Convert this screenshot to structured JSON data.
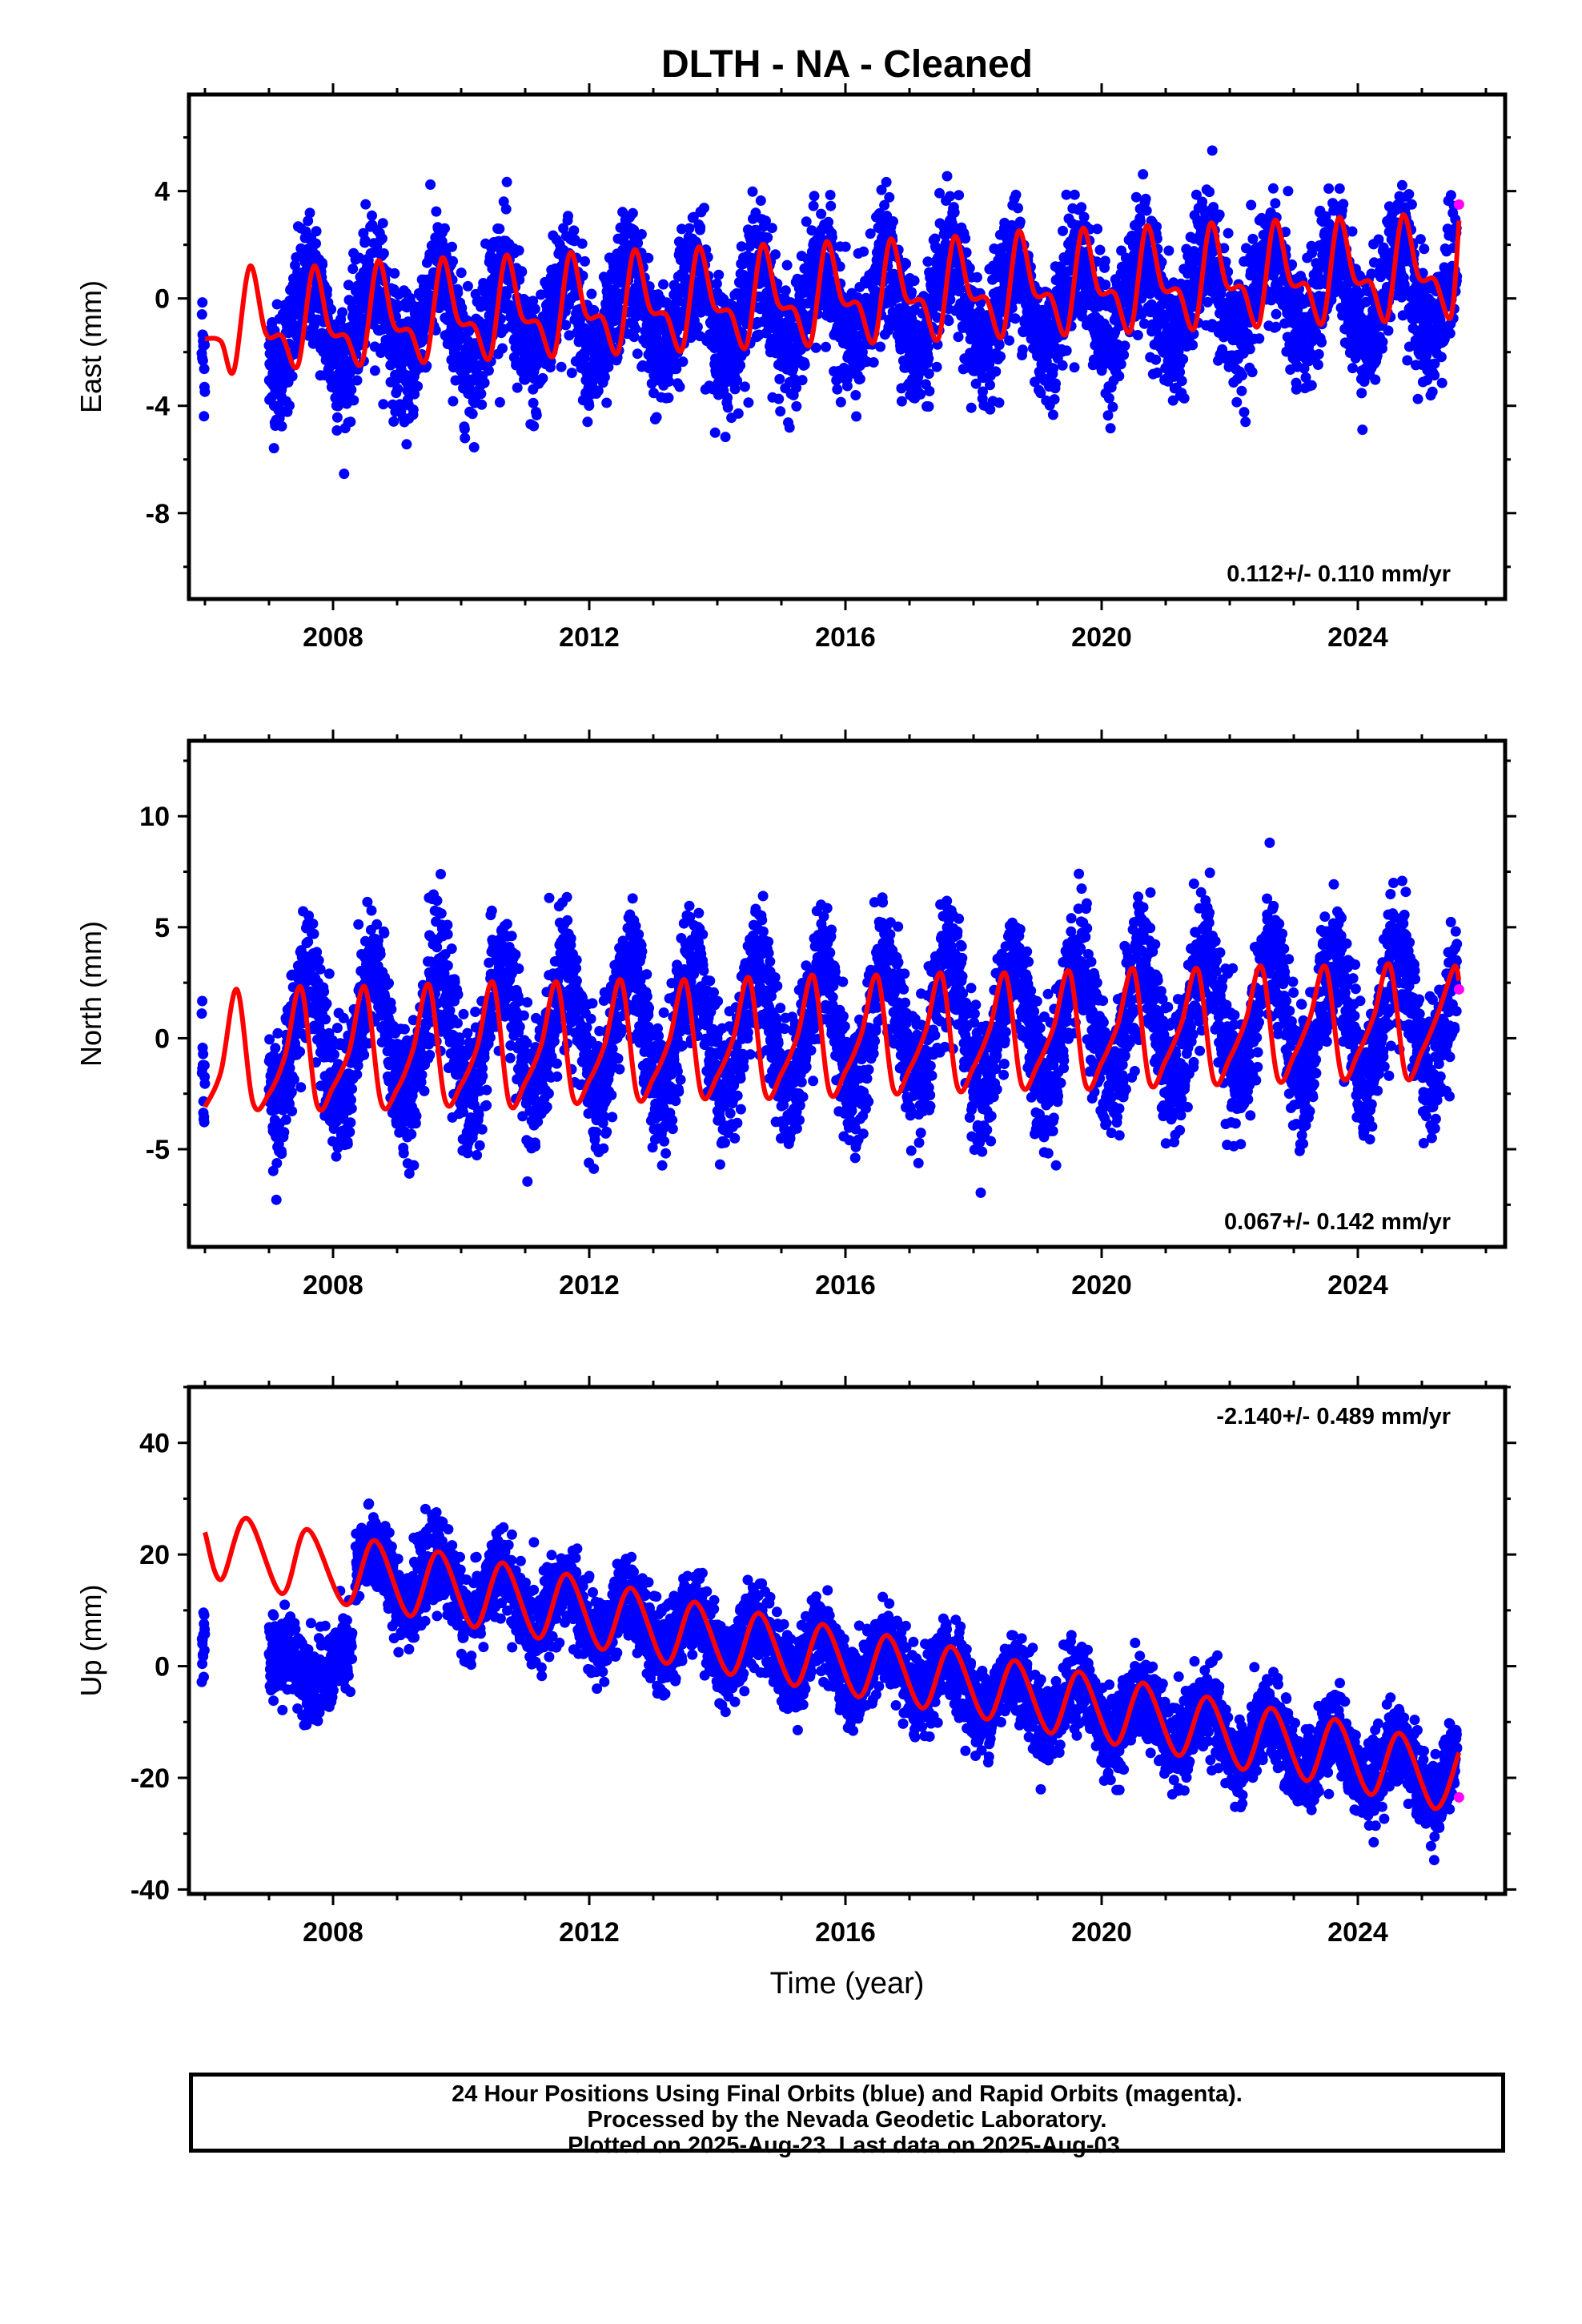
{
  "title": "DLTH  - NA - Cleaned",
  "caption": {
    "line1": "24 Hour Positions Using Final Orbits (blue) and Rapid Orbits (magenta).",
    "line2": "Processed by the Nevada Geodetic Laboratory.",
    "line3": "Plotted on 2025-Aug-23. Last data on 2025-Aug-03."
  },
  "colors": {
    "final_orbits": "#0000ff",
    "rapid_orbits": "#ff00ff",
    "model": "#ff0000",
    "frame": "#000000"
  },
  "chart_data": [
    {
      "type": "scatter",
      "panel": "east",
      "ylabel": "East (mm)",
      "xlim": [
        2005.75,
        2026.3
      ],
      "ylim": [
        -11.2,
        7.6
      ],
      "yticks": [
        -8,
        -4,
        0,
        4
      ],
      "ytick_labels": [
        "-8",
        "-4",
        "0",
        "4"
      ],
      "xticks": [
        2008,
        2012,
        2016,
        2020,
        2024
      ],
      "xtick_labels": [
        "2008",
        "2012",
        "2016",
        "2020",
        "2024"
      ],
      "rate_label": "0.112+/- 0.110 mm/yr",
      "rate_label_position": "bottom-right",
      "series": [
        {
          "role": "final-orbits",
          "color": "#0000ff",
          "segments": [
            [
              2005.95,
              2006.0
            ],
            [
              2007.0,
              2025.55
            ]
          ],
          "trend": [
            [
              2007.0,
              -1.0
            ],
            [
              2025.5,
              0.3
            ]
          ],
          "seasonal_amplitude": 1.6,
          "noise_sd": 1.3
        },
        {
          "role": "rapid-orbits",
          "color": "#ff00ff",
          "points": [
            [
              2025.58,
              3.5
            ]
          ]
        },
        {
          "role": "model",
          "color": "#ff0000",
          "points": [
            [
              2006.0,
              -1.5
            ],
            [
              2006.25,
              -1.6
            ],
            [
              2006.45,
              -2.7
            ],
            [
              2006.7,
              1.2
            ],
            [
              2006.95,
              -1.3
            ],
            [
              2007.2,
              -1.4
            ],
            [
              2007.45,
              -2.5
            ],
            [
              2007.7,
              1.2
            ],
            [
              2007.95,
              -1.2
            ],
            [
              2008.2,
              -1.4
            ],
            [
              2008.45,
              -2.4
            ],
            [
              2008.7,
              1.4
            ],
            [
              2008.95,
              -1.0
            ],
            [
              2009.2,
              -1.2
            ],
            [
              2009.45,
              -2.3
            ],
            [
              2009.7,
              1.5
            ],
            [
              2009.95,
              -0.8
            ],
            [
              2010.2,
              -1.0
            ],
            [
              2010.45,
              -2.2
            ],
            [
              2010.7,
              1.6
            ],
            [
              2010.95,
              -0.7
            ],
            [
              2011.2,
              -0.9
            ],
            [
              2011.45,
              -2.1
            ],
            [
              2011.7,
              1.7
            ],
            [
              2011.95,
              -0.6
            ],
            [
              2012.2,
              -0.7
            ],
            [
              2012.45,
              -2.0
            ],
            [
              2012.7,
              1.8
            ],
            [
              2012.95,
              -0.4
            ],
            [
              2013.2,
              -0.6
            ],
            [
              2013.45,
              -1.9
            ],
            [
              2013.7,
              1.9
            ],
            [
              2013.95,
              -0.3
            ],
            [
              2014.2,
              -0.5
            ],
            [
              2014.45,
              -1.8
            ],
            [
              2014.7,
              2.0
            ],
            [
              2014.95,
              -0.2
            ],
            [
              2015.2,
              -0.4
            ],
            [
              2015.45,
              -1.7
            ],
            [
              2015.7,
              2.1
            ],
            [
              2015.95,
              -0.1
            ],
            [
              2016.2,
              -0.2
            ],
            [
              2016.45,
              -1.6
            ],
            [
              2016.7,
              2.2
            ],
            [
              2016.95,
              0.0
            ],
            [
              2017.2,
              -0.1
            ],
            [
              2017.45,
              -1.5
            ],
            [
              2017.7,
              2.3
            ],
            [
              2017.95,
              0.1
            ],
            [
              2018.2,
              0.0
            ],
            [
              2018.45,
              -1.4
            ],
            [
              2018.7,
              2.5
            ],
            [
              2018.95,
              0.2
            ],
            [
              2019.2,
              0.1
            ],
            [
              2019.45,
              -1.3
            ],
            [
              2019.7,
              2.6
            ],
            [
              2019.95,
              0.3
            ],
            [
              2020.2,
              0.2
            ],
            [
              2020.45,
              -1.2
            ],
            [
              2020.7,
              2.7
            ],
            [
              2020.95,
              0.4
            ],
            [
              2021.2,
              0.3
            ],
            [
              2021.45,
              -1.1
            ],
            [
              2021.7,
              2.8
            ],
            [
              2021.95,
              0.5
            ],
            [
              2022.2,
              0.4
            ],
            [
              2022.45,
              -1.0
            ],
            [
              2022.7,
              2.9
            ],
            [
              2022.95,
              0.6
            ],
            [
              2023.2,
              0.5
            ],
            [
              2023.45,
              -0.9
            ],
            [
              2023.7,
              3.0
            ],
            [
              2023.95,
              0.7
            ],
            [
              2024.2,
              0.6
            ],
            [
              2024.45,
              -0.8
            ],
            [
              2024.7,
              3.1
            ],
            [
              2024.95,
              0.8
            ],
            [
              2025.2,
              0.7
            ],
            [
              2025.45,
              -0.7
            ],
            [
              2025.58,
              2.9
            ]
          ]
        }
      ]
    },
    {
      "type": "scatter",
      "panel": "north",
      "ylabel": "North (mm)",
      "xlim": [
        2005.75,
        2026.3
      ],
      "ylim": [
        -9.4,
        13.4
      ],
      "yticks": [
        -5,
        0,
        5,
        10
      ],
      "ytick_labels": [
        "-5",
        "0",
        "5",
        "10"
      ],
      "xticks": [
        2008,
        2012,
        2016,
        2020,
        2024
      ],
      "xtick_labels": [
        "2008",
        "2012",
        "2016",
        "2020",
        "2024"
      ],
      "rate_label": "0.067+/- 0.142 mm/yr",
      "rate_label_position": "bottom-right",
      "series": [
        {
          "role": "final-orbits",
          "color": "#0000ff",
          "segments": [
            [
              2005.95,
              2006.0
            ],
            [
              2007.0,
              2025.55
            ]
          ],
          "trend": [
            [
              2007.0,
              0.0
            ],
            [
              2025.5,
              1.0
            ]
          ],
          "seasonal_amplitude": 2.8,
          "noise_sd": 1.6
        },
        {
          "role": "rapid-orbits",
          "color": "#ff00ff",
          "points": [
            [
              2025.58,
              2.2
            ]
          ]
        },
        {
          "role": "model",
          "color": "#ff0000",
          "points": [
            [
              2006.0,
              -3.1
            ],
            [
              2006.25,
              -1.5
            ],
            [
              2006.5,
              2.2
            ],
            [
              2006.75,
              -2.9
            ],
            [
              2007.0,
              -2.5
            ],
            [
              2007.25,
              -0.8
            ],
            [
              2007.5,
              2.3
            ],
            [
              2007.75,
              -3.0
            ],
            [
              2008.0,
              -2.2
            ],
            [
              2008.25,
              -0.6
            ],
            [
              2008.5,
              2.3
            ],
            [
              2008.75,
              -2.9
            ],
            [
              2009.0,
              -2.3
            ],
            [
              2009.25,
              -0.5
            ],
            [
              2009.5,
              2.4
            ],
            [
              2009.75,
              -2.8
            ],
            [
              2010.0,
              -2.1
            ],
            [
              2010.25,
              -0.4
            ],
            [
              2010.5,
              2.5
            ],
            [
              2010.75,
              -2.9
            ],
            [
              2011.0,
              -2.0
            ],
            [
              2011.25,
              -0.3
            ],
            [
              2011.5,
              2.5
            ],
            [
              2011.75,
              -2.7
            ],
            [
              2012.0,
              -1.9
            ],
            [
              2012.25,
              -0.2
            ],
            [
              2012.5,
              2.6
            ],
            [
              2012.75,
              -2.6
            ],
            [
              2013.0,
              -1.8
            ],
            [
              2013.25,
              -0.1
            ],
            [
              2013.5,
              2.6
            ],
            [
              2013.75,
              -2.5
            ],
            [
              2014.0,
              -1.7
            ],
            [
              2014.25,
              0.0
            ],
            [
              2014.5,
              2.7
            ],
            [
              2014.75,
              -2.5
            ],
            [
              2015.0,
              -1.6
            ],
            [
              2015.25,
              0.1
            ],
            [
              2015.5,
              2.8
            ],
            [
              2015.75,
              -2.4
            ],
            [
              2016.0,
              -1.5
            ],
            [
              2016.25,
              0.2
            ],
            [
              2016.5,
              2.8
            ],
            [
              2016.75,
              -2.3
            ],
            [
              2017.0,
              -1.4
            ],
            [
              2017.25,
              0.3
            ],
            [
              2017.5,
              2.9
            ],
            [
              2017.75,
              -2.2
            ],
            [
              2018.0,
              -1.3
            ],
            [
              2018.25,
              0.4
            ],
            [
              2018.5,
              2.9
            ],
            [
              2018.75,
              -2.1
            ],
            [
              2019.0,
              -1.2
            ],
            [
              2019.25,
              0.5
            ],
            [
              2019.5,
              3.0
            ],
            [
              2019.75,
              -2.1
            ],
            [
              2020.0,
              -1.1
            ],
            [
              2020.25,
              0.6
            ],
            [
              2020.5,
              3.1
            ],
            [
              2020.75,
              -2.0
            ],
            [
              2021.0,
              -1.0
            ],
            [
              2021.25,
              0.7
            ],
            [
              2021.5,
              3.1
            ],
            [
              2021.75,
              -1.9
            ],
            [
              2022.0,
              -0.9
            ],
            [
              2022.25,
              0.8
            ],
            [
              2022.5,
              3.2
            ],
            [
              2022.75,
              -1.8
            ],
            [
              2023.0,
              -0.8
            ],
            [
              2023.25,
              0.9
            ],
            [
              2023.5,
              3.2
            ],
            [
              2023.75,
              -1.7
            ],
            [
              2024.0,
              -0.7
            ],
            [
              2024.25,
              1.0
            ],
            [
              2024.5,
              3.3
            ],
            [
              2024.75,
              -1.7
            ],
            [
              2025.0,
              -0.6
            ],
            [
              2025.25,
              1.1
            ],
            [
              2025.5,
              3.2
            ],
            [
              2025.58,
              2.6
            ]
          ]
        }
      ]
    },
    {
      "type": "scatter",
      "panel": "up",
      "ylabel": "Up (mm)",
      "xlabel": "Time (year)",
      "xlim": [
        2005.75,
        2026.3
      ],
      "ylim": [
        -40.8,
        50
      ],
      "yticks": [
        -40,
        -20,
        0,
        20,
        40
      ],
      "ytick_labels": [
        "-40",
        "-20",
        "0",
        "20",
        "40"
      ],
      "xticks": [
        2008,
        2012,
        2016,
        2020,
        2024
      ],
      "xtick_labels": [
        "2008",
        "2012",
        "2016",
        "2020",
        "2024"
      ],
      "rate_label": "-2.140+/- 0.489 mm/yr",
      "rate_label_position": "top-right",
      "series": [
        {
          "role": "final-orbits",
          "color": "#0000ff",
          "segments": [
            [
              2005.95,
              2006.0
            ],
            [
              2007.0,
              2008.3
            ],
            [
              2008.35,
              2025.55
            ]
          ],
          "segment_levels": [
            3.0,
            0.0,
            null
          ],
          "trend": [
            [
              2008.5,
              17.0
            ],
            [
              2025.5,
              -20.0
            ]
          ],
          "seasonal_amplitude": 4.5,
          "noise_sd": 4.0
        },
        {
          "role": "rapid-orbits",
          "color": "#ff00ff",
          "points": [
            [
              2025.58,
              -23.5
            ]
          ]
        },
        {
          "role": "model",
          "color": "#ff0000",
          "points": [
            [
              2006.0,
              24.0
            ],
            [
              2006.25,
              15.5
            ],
            [
              2006.65,
              26.5
            ],
            [
              2007.2,
              13.0
            ],
            [
              2007.6,
              24.5
            ],
            [
              2008.2,
              11.0
            ],
            [
              2008.65,
              22.5
            ],
            [
              2009.2,
              9.0
            ],
            [
              2009.65,
              20.5
            ],
            [
              2010.2,
              7.0
            ],
            [
              2010.65,
              18.5
            ],
            [
              2011.2,
              5.0
            ],
            [
              2011.65,
              16.5
            ],
            [
              2012.2,
              3.0
            ],
            [
              2012.65,
              14.0
            ],
            [
              2013.2,
              0.5
            ],
            [
              2013.65,
              11.5
            ],
            [
              2014.2,
              -1.5
            ],
            [
              2014.65,
              9.5
            ],
            [
              2015.2,
              -3.5
            ],
            [
              2015.65,
              7.5
            ],
            [
              2016.2,
              -5.5
            ],
            [
              2016.65,
              5.5
            ],
            [
              2017.2,
              -7.5
            ],
            [
              2017.65,
              3.5
            ],
            [
              2018.2,
              -9.5
            ],
            [
              2018.65,
              1.0
            ],
            [
              2019.2,
              -12.0
            ],
            [
              2019.65,
              -1.0
            ],
            [
              2020.2,
              -14.0
            ],
            [
              2020.65,
              -3.0
            ],
            [
              2021.2,
              -16.0
            ],
            [
              2021.65,
              -5.5
            ],
            [
              2022.2,
              -18.5
            ],
            [
              2022.65,
              -7.5
            ],
            [
              2023.2,
              -20.5
            ],
            [
              2023.65,
              -9.5
            ],
            [
              2024.2,
              -23.0
            ],
            [
              2024.65,
              -12.0
            ],
            [
              2025.2,
              -25.5
            ],
            [
              2025.58,
              -15.5
            ]
          ]
        }
      ]
    }
  ]
}
